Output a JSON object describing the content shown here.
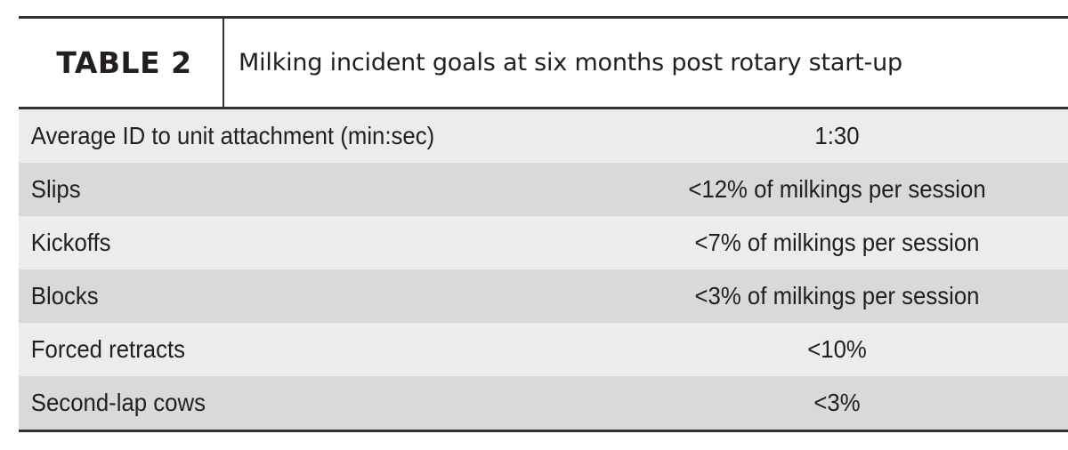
{
  "table": {
    "label": "TABLE 2",
    "title": "Milking incident goals at six months post rotary start-up",
    "rows": [
      {
        "metric": "Average ID to unit attachment (min:sec)",
        "goal": "1:30"
      },
      {
        "metric": "Slips",
        "goal": "<12% of milkings per session"
      },
      {
        "metric": "Kickoffs",
        "goal": "<7% of milkings per session"
      },
      {
        "metric": "Blocks",
        "goal": "<3% of milkings per session"
      },
      {
        "metric": "Forced retracts",
        "goal": "<10%"
      },
      {
        "metric": "Second-lap cows",
        "goal": "<3%"
      }
    ]
  },
  "colors": {
    "text": "#231f20",
    "rule": "#333333",
    "row_light": "#ececec",
    "row_dark": "#d9d9d9"
  }
}
